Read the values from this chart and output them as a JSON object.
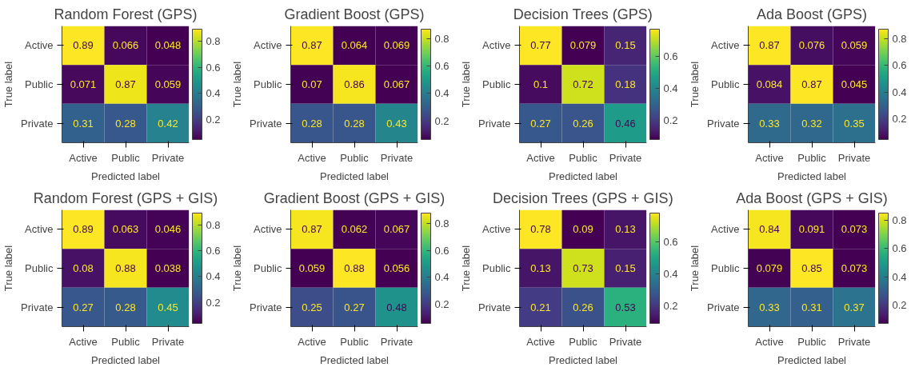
{
  "chart_data": [
    {
      "type": "heatmap",
      "title": "Random Forest (GPS)",
      "xlabel": "Predicted label",
      "ylabel": "True label",
      "categories": [
        "Active",
        "Public",
        "Private"
      ],
      "y_categories": [
        "Active",
        "Public",
        "Private"
      ],
      "cells": [
        [
          0.89,
          0.066,
          0.048
        ],
        [
          0.071,
          0.87,
          0.059
        ],
        [
          0.31,
          0.28,
          0.42
        ]
      ],
      "clim": [
        0.048,
        0.89
      ],
      "cticks": [
        0.2,
        0.4,
        0.6,
        0.8
      ],
      "data_labels": true
    },
    {
      "type": "heatmap",
      "title": "Gradient Boost (GPS)",
      "xlabel": "Predicted label",
      "ylabel": "True label",
      "categories": [
        "Active",
        "Public",
        "Private"
      ],
      "y_categories": [
        "Active",
        "Public",
        "Private"
      ],
      "cells": [
        [
          0.87,
          0.064,
          0.069
        ],
        [
          0.07,
          0.86,
          0.067
        ],
        [
          0.28,
          0.28,
          0.43
        ]
      ],
      "clim": [
        0.064,
        0.87
      ],
      "cticks": [
        0.2,
        0.4,
        0.6,
        0.8
      ],
      "data_labels": true
    },
    {
      "type": "heatmap",
      "title": "Decision Trees (GPS)",
      "xlabel": "Predicted label",
      "ylabel": "True label",
      "categories": [
        "Active",
        "Public",
        "Private"
      ],
      "y_categories": [
        "Active",
        "Public",
        "Private"
      ],
      "cells": [
        [
          0.77,
          0.079,
          0.15
        ],
        [
          0.1,
          0.72,
          0.18
        ],
        [
          0.27,
          0.26,
          0.46
        ]
      ],
      "clim": [
        0.079,
        0.77
      ],
      "cticks": [
        0.2,
        0.4,
        0.6
      ],
      "data_labels": true
    },
    {
      "type": "heatmap",
      "title": "Ada Boost (GPS)",
      "xlabel": "Predicted label",
      "ylabel": "True label",
      "categories": [
        "Active",
        "Public",
        "Private"
      ],
      "y_categories": [
        "Active",
        "Public",
        "Private"
      ],
      "cells": [
        [
          0.87,
          0.076,
          0.059
        ],
        [
          0.084,
          0.87,
          0.045
        ],
        [
          0.33,
          0.32,
          0.35
        ]
      ],
      "clim": [
        0.045,
        0.87
      ],
      "cticks": [
        0.2,
        0.4,
        0.6,
        0.8
      ],
      "data_labels": true
    },
    {
      "type": "heatmap",
      "title": "Random Forest (GPS + GIS)",
      "xlabel": "Predicted label",
      "ylabel": "True label",
      "categories": [
        "Active",
        "Public",
        "Private"
      ],
      "y_categories": [
        "Active",
        "Public",
        "Private"
      ],
      "cells": [
        [
          0.89,
          0.063,
          0.046
        ],
        [
          0.08,
          0.88,
          0.038
        ],
        [
          0.27,
          0.28,
          0.45
        ]
      ],
      "clim": [
        0.038,
        0.89
      ],
      "cticks": [
        0.2,
        0.4,
        0.6,
        0.8
      ],
      "data_labels": true
    },
    {
      "type": "heatmap",
      "title": "Gradient Boost (GPS + GIS)",
      "xlabel": "Predicted label",
      "ylabel": "True label",
      "categories": [
        "Active",
        "Public",
        "Private"
      ],
      "y_categories": [
        "Active",
        "Public",
        "Private"
      ],
      "cells": [
        [
          0.87,
          0.062,
          0.067
        ],
        [
          0.059,
          0.88,
          0.056
        ],
        [
          0.25,
          0.27,
          0.48
        ]
      ],
      "clim": [
        0.056,
        0.88
      ],
      "cticks": [
        0.2,
        0.4,
        0.6,
        0.8
      ],
      "data_labels": true
    },
    {
      "type": "heatmap",
      "title": "Decision Trees (GPS + GIS)",
      "xlabel": "Predicted label",
      "ylabel": "True label",
      "categories": [
        "Active",
        "Public",
        "Private"
      ],
      "y_categories": [
        "Active",
        "Public",
        "Private"
      ],
      "cells": [
        [
          0.78,
          0.09,
          0.13
        ],
        [
          0.13,
          0.73,
          0.15
        ],
        [
          0.21,
          0.26,
          0.53
        ]
      ],
      "clim": [
        0.09,
        0.78
      ],
      "cticks": [
        0.2,
        0.4,
        0.6
      ],
      "data_labels": true
    },
    {
      "type": "heatmap",
      "title": "Ada Boost (GPS + GIS)",
      "xlabel": "Predicted label",
      "ylabel": "True label",
      "categories": [
        "Active",
        "Public",
        "Private"
      ],
      "y_categories": [
        "Active",
        "Public",
        "Private"
      ],
      "cells": [
        [
          0.84,
          0.091,
          0.073
        ],
        [
          0.079,
          0.85,
          0.073
        ],
        [
          0.33,
          0.31,
          0.37
        ]
      ],
      "clim": [
        0.073,
        0.85
      ],
      "cticks": [
        0.2,
        0.4,
        0.6,
        0.8
      ],
      "data_labels": true
    }
  ]
}
